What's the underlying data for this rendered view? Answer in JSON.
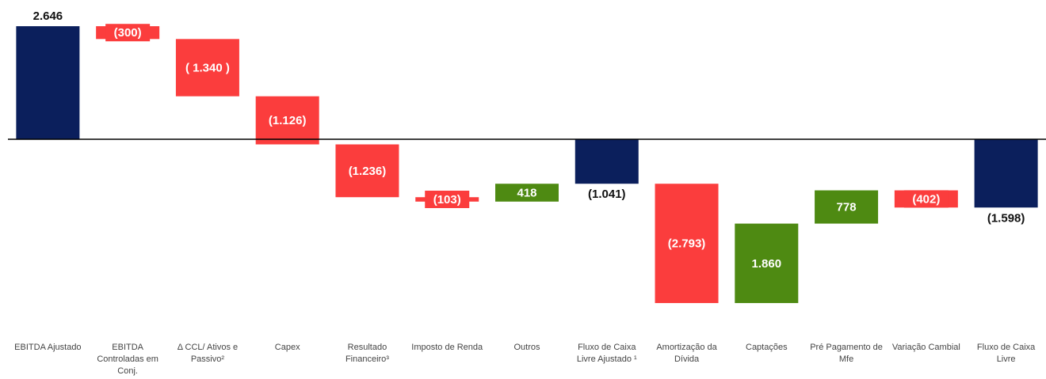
{
  "chart_data": {
    "type": "waterfall",
    "categories": [
      "EBITDA Ajustado",
      "EBITDA Controladas em Conj.",
      "Δ CCL/ Ativos e Passivo²",
      "Capex",
      "Resultado Financeiro³",
      "Imposto de Renda",
      "Outros",
      "Fluxo de Caixa Livre Ajustado ¹",
      "Amortização da Dívida",
      "Captações",
      "Pré Pagamento de Mfe",
      "Variação Cambial",
      "Fluxo de Caixa Livre"
    ],
    "values": [
      2646,
      -300,
      -1340,
      -1126,
      -1236,
      -103,
      418,
      -1041,
      -2793,
      1860,
      778,
      -402,
      -1598
    ],
    "value_labels": [
      "2.646",
      "(300)",
      "( 1.340 )",
      "(1.126)",
      "(1.236)",
      "(103)",
      "418",
      "(1.041)",
      "(2.793)",
      "1.860",
      "778",
      "(402)",
      "(1.598)"
    ],
    "measure": [
      "total",
      "relative",
      "relative",
      "relative",
      "relative",
      "relative",
      "relative",
      "total",
      "relative",
      "relative",
      "relative",
      "relative",
      "total"
    ],
    "colors": {
      "total": "#0b1f5c",
      "negative": "#fb3d3d",
      "positive": "#4e8a12"
    }
  }
}
